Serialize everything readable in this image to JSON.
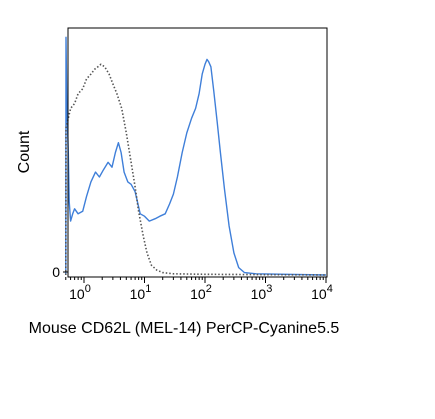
{
  "chart_data": {
    "type": "line",
    "title": "",
    "xlabel": "Mouse CD62L (MEL-14) PerCP-Cyanine5.5",
    "ylabel": "Count",
    "x_scale": "log",
    "xlim": [
      0.5,
      10000
    ],
    "ylim": [
      0,
      100
    ],
    "x_ticks": [
      {
        "value": 1,
        "base": "10",
        "exp": "0"
      },
      {
        "value": 10,
        "base": "10",
        "exp": "1"
      },
      {
        "value": 100,
        "base": "10",
        "exp": "2"
      },
      {
        "value": 1000,
        "base": "10",
        "exp": "3"
      },
      {
        "value": 10000,
        "base": "10",
        "exp": "4"
      }
    ],
    "y_ticks": [
      {
        "value": 0,
        "label": "0"
      }
    ],
    "grid": false,
    "legend": "none",
    "series": [
      {
        "color": "#3f7fd9",
        "style": "solid",
        "points": [
          [
            0.5,
            0
          ],
          [
            0.505,
            97
          ],
          [
            0.52,
            70
          ],
          [
            0.55,
            50
          ],
          [
            0.57,
            30
          ],
          [
            0.6,
            22
          ],
          [
            0.65,
            25
          ],
          [
            0.7,
            27
          ],
          [
            0.8,
            25
          ],
          [
            0.95,
            26
          ],
          [
            1.1,
            32
          ],
          [
            1.3,
            38
          ],
          [
            1.55,
            42
          ],
          [
            1.8,
            40
          ],
          [
            2.1,
            43
          ],
          [
            2.5,
            46
          ],
          [
            2.9,
            44
          ],
          [
            3.3,
            50
          ],
          [
            3.7,
            54
          ],
          [
            4.1,
            50
          ],
          [
            4.6,
            42
          ],
          [
            5.3,
            38
          ],
          [
            6.0,
            37
          ],
          [
            7.0,
            34
          ],
          [
            8.5,
            25
          ],
          [
            10,
            24
          ],
          [
            12,
            22
          ],
          [
            15,
            23
          ],
          [
            18,
            24
          ],
          [
            22,
            25
          ],
          [
            26,
            29
          ],
          [
            30,
            33
          ],
          [
            35,
            40
          ],
          [
            42,
            50
          ],
          [
            50,
            58
          ],
          [
            60,
            64
          ],
          [
            70,
            68
          ],
          [
            80,
            74
          ],
          [
            90,
            82
          ],
          [
            100,
            86
          ],
          [
            108,
            88
          ],
          [
            115,
            87
          ],
          [
            125,
            85
          ],
          [
            140,
            75
          ],
          [
            160,
            62
          ],
          [
            180,
            50
          ],
          [
            210,
            35
          ],
          [
            250,
            20
          ],
          [
            300,
            9
          ],
          [
            360,
            3
          ],
          [
            450,
            1
          ],
          [
            700,
            0.5
          ],
          [
            10000,
            0
          ]
        ]
      },
      {
        "color": "#555555",
        "style": "dotted",
        "points": [
          [
            0.5,
            0
          ],
          [
            0.505,
            60
          ],
          [
            0.55,
            64
          ],
          [
            0.6,
            68
          ],
          [
            0.7,
            70
          ],
          [
            0.8,
            74
          ],
          [
            0.95,
            76
          ],
          [
            1.1,
            80
          ],
          [
            1.3,
            82
          ],
          [
            1.5,
            84
          ],
          [
            1.7,
            85
          ],
          [
            1.9,
            86
          ],
          [
            2.2,
            85
          ],
          [
            2.6,
            82
          ],
          [
            3.0,
            78
          ],
          [
            3.5,
            74
          ],
          [
            4.2,
            68
          ],
          [
            5.0,
            58
          ],
          [
            6.0,
            46
          ],
          [
            7.0,
            36
          ],
          [
            8.0,
            26
          ],
          [
            9.5,
            16
          ],
          [
            11,
            9
          ],
          [
            13,
            4
          ],
          [
            16,
            2
          ],
          [
            20,
            1
          ],
          [
            30,
            0.5
          ],
          [
            100,
            0.3
          ],
          [
            10000,
            0
          ]
        ]
      }
    ]
  }
}
